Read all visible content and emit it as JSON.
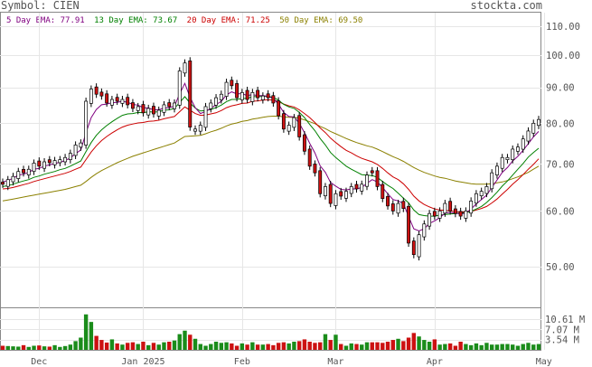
{
  "header": {
    "symbol_label": "Symbol: CIEN",
    "site": "stockta.com"
  },
  "legend": [
    {
      "text": "5 Day EMA: 77.91",
      "color": "#800080"
    },
    {
      "text": "13 Day EMA: 73.67",
      "color": "#008000"
    },
    {
      "text": "20 Day EMA: 71.25",
      "color": "#cc0000"
    },
    {
      "text": "50 Day EMA: 69.50",
      "color": "#8b8000"
    }
  ],
  "chart_data": {
    "type": "candlestick",
    "price_axis": {
      "ticks": [
        50,
        60,
        70,
        80,
        90,
        100,
        110
      ],
      "labels": [
        "50.00",
        "60.00",
        "70.00",
        "80.00",
        "90.00",
        "100.00",
        "110.00"
      ],
      "scale": "log",
      "ylim": [
        44,
        115
      ]
    },
    "volume_axis": {
      "ticks": [
        3.54,
        7.07,
        10.61
      ],
      "labels": [
        "3.54 M",
        "7.07 M",
        "10.61 M"
      ],
      "ylim": [
        0,
        14
      ]
    },
    "x_labels": [
      {
        "text": "Dec",
        "index": 7
      },
      {
        "text": "Jan 2025",
        "index": 27
      },
      {
        "text": "Feb",
        "index": 46
      },
      {
        "text": "Mar",
        "index": 64
      },
      {
        "text": "Apr",
        "index": 83
      },
      {
        "text": "May",
        "index": 104
      }
    ],
    "closes": [
      65.5,
      66.5,
      67.2,
      68.3,
      68.0,
      68.8,
      70.2,
      69.5,
      70.5,
      70.3,
      70.8,
      71.0,
      71.5,
      72.5,
      74.5,
      75.0,
      86.0,
      89.5,
      88.0,
      87.5,
      85.5,
      86.5,
      86.0,
      86.5,
      85.0,
      84.0,
      84.5,
      82.8,
      84.0,
      82.5,
      83.5,
      85.0,
      84.5,
      85.5,
      95.0,
      97.5,
      79.0,
      78.5,
      79.5,
      84.5,
      85.5,
      87.0,
      88.0,
      91.5,
      90.5,
      87.0,
      88.5,
      86.5,
      88.5,
      87.0,
      87.5,
      87.0,
      85.5,
      82.0,
      78.5,
      79.5,
      81.5,
      76.5,
      73.0,
      69.5,
      68.0,
      63.5,
      65.0,
      61.5,
      63.5,
      63.0,
      64.0,
      65.0,
      64.5,
      65.5,
      67.5,
      68.0,
      65.0,
      62.5,
      61.0,
      60.0,
      61.5,
      60.5,
      54.0,
      52.0,
      55.5,
      57.5,
      59.5,
      59.0,
      60.0,
      61.5,
      60.0,
      59.5,
      59.0,
      60.0,
      62.0,
      63.5,
      64.0,
      65.0,
      68.0,
      69.5,
      71.5,
      71.5,
      73.5,
      74.0,
      76.0,
      78.0,
      80.0,
      81.0
    ],
    "ups": [
      0,
      1,
      1,
      1,
      0,
      1,
      1,
      0,
      1,
      0,
      1,
      1,
      1,
      1,
      1,
      1,
      1,
      1,
      0,
      0,
      0,
      1,
      0,
      1,
      0,
      0,
      1,
      0,
      1,
      0,
      1,
      1,
      0,
      1,
      1,
      1,
      0,
      1,
      1,
      1,
      1,
      1,
      1,
      1,
      0,
      0,
      1,
      0,
      1,
      0,
      1,
      0,
      0,
      0,
      0,
      1,
      1,
      0,
      0,
      0,
      0,
      0,
      1,
      0,
      1,
      0,
      1,
      1,
      0,
      1,
      1,
      0,
      0,
      0,
      0,
      0,
      1,
      0,
      0,
      0,
      1,
      1,
      1,
      0,
      1,
      1,
      0,
      0,
      0,
      1,
      1,
      1,
      1,
      1,
      1,
      1,
      1,
      1,
      1,
      1,
      1,
      1,
      1,
      1
    ],
    "volumes": [
      1.4,
      1.3,
      1.2,
      1.1,
      1.6,
      1.0,
      1.4,
      1.5,
      1.2,
      1.1,
      1.6,
      1.0,
      1.3,
      1.8,
      3.0,
      4.2,
      12.2,
      9.6,
      4.8,
      3.4,
      2.5,
      3.6,
      2.2,
      1.8,
      2.4,
      2.6,
      2.0,
      2.8,
      1.6,
      2.4,
      1.8,
      2.6,
      2.8,
      3.2,
      5.4,
      6.6,
      5.2,
      3.8,
      2.0,
      1.4,
      2.0,
      2.8,
      2.4,
      2.6,
      2.2,
      1.4,
      2.2,
      1.8,
      2.6,
      1.8,
      1.8,
      2.0,
      1.6,
      2.4,
      2.6,
      2.2,
      2.8,
      3.0,
      3.6,
      2.8,
      2.4,
      2.6,
      5.4,
      3.4,
      5.2,
      2.0,
      1.4,
      2.2,
      2.0,
      1.8,
      2.6,
      2.6,
      2.6,
      2.4,
      2.8,
      3.4,
      3.8,
      3.0,
      4.2,
      5.8,
      4.6,
      3.4,
      2.8,
      3.6,
      1.8,
      2.0,
      2.2,
      1.4,
      2.8,
      2.0,
      1.6,
      2.2,
      1.6,
      2.4,
      1.8,
      1.8,
      2.0,
      2.0,
      1.8,
      1.4,
      2.0,
      2.4,
      1.8,
      2.0
    ],
    "ema5": [
      66.0,
      66.3,
      66.8,
      67.5,
      67.7,
      68.1,
      68.8,
      69.0,
      69.5,
      69.8,
      70.1,
      70.4,
      70.8,
      71.4,
      72.4,
      73.3,
      77.5,
      81.5,
      83.7,
      85.0,
      85.2,
      85.6,
      85.7,
      86.0,
      85.7,
      85.1,
      84.9,
      84.2,
      84.1,
      83.6,
      83.6,
      84.1,
      84.2,
      84.6,
      88.1,
      91.2,
      87.1,
      84.2,
      82.6,
      83.2,
      84.0,
      85.0,
      86.0,
      87.8,
      88.7,
      88.1,
      88.2,
      87.6,
      87.9,
      87.6,
      87.6,
      87.4,
      86.8,
      85.2,
      82.9,
      81.8,
      81.7,
      80.0,
      77.6,
      74.9,
      72.6,
      69.6,
      68.1,
      65.9,
      65.1,
      64.4,
      64.3,
      64.5,
      64.5,
      64.8,
      65.7,
      66.5,
      66.0,
      64.8,
      63.5,
      62.3,
      62.0,
      61.5,
      58.9,
      56.6,
      56.2,
      56.6,
      57.6,
      58.1,
      58.7,
      59.6,
      59.7,
      59.6,
      59.4,
      59.6,
      60.4,
      61.4,
      62.3,
      63.2,
      64.8,
      66.4,
      68.1,
      69.2,
      70.7,
      71.8,
      73.2,
      74.8,
      76.5,
      77.9
    ],
    "ema13": [
      65.0,
      65.2,
      65.5,
      65.9,
      66.2,
      66.5,
      67.0,
      67.3,
      67.7,
      68.0,
      68.3,
      68.7,
      69.0,
      69.5,
      70.1,
      70.7,
      72.9,
      75.1,
      76.9,
      78.3,
      79.4,
      80.4,
      81.3,
      82.1,
      82.5,
      82.6,
      82.9,
      82.8,
      83.1,
      83.0,
      83.1,
      83.5,
      83.6,
      84.0,
      85.6,
      87.3,
      85.5,
      84.1,
      83.3,
      83.4,
      83.7,
      84.2,
      84.9,
      85.9,
      86.5,
      86.5,
      86.8,
      86.8,
      87.3,
      87.3,
      87.4,
      87.4,
      87.1,
      86.3,
      85.1,
      84.4,
      84.0,
      82.9,
      81.5,
      79.7,
      78.1,
      76.1,
      74.5,
      72.7,
      71.5,
      70.5,
      69.5,
      68.8,
      68.2,
      67.6,
      67.5,
      67.4,
      67.0,
      66.1,
      65.3,
      64.6,
      63.6,
      62.6,
      61.6,
      60.2,
      59.3,
      59.1,
      59.0,
      59.0,
      59.2,
      59.3,
      59.4,
      59.5,
      59.6,
      59.7,
      59.9,
      60.4,
      60.9,
      61.7,
      62.7,
      63.8,
      65.1,
      66.2,
      67.5,
      68.8,
      70.1,
      71.6,
      72.7,
      73.7
    ],
    "ema20": [
      64.5,
      64.6,
      64.8,
      65.1,
      65.4,
      65.7,
      66.1,
      66.4,
      66.7,
      67.0,
      67.3,
      67.6,
      67.9,
      68.3,
      68.8,
      69.3,
      71.0,
      72.8,
      74.3,
      75.6,
      76.6,
      77.5,
      78.3,
      79.0,
      79.5,
      79.8,
      80.1,
      80.2,
      80.5,
      80.6,
      80.8,
      81.2,
      81.5,
      81.8,
      83.1,
      84.4,
      83.5,
      82.6,
      82.1,
      82.2,
      82.5,
      82.8,
      83.4,
      84.2,
      84.7,
      85.0,
      85.4,
      85.5,
      86.0,
      86.1,
      86.3,
      86.4,
      86.3,
      85.9,
      85.2,
      84.7,
      84.4,
      83.6,
      82.6,
      81.5,
      80.2,
      78.8,
      77.6,
      76.2,
      75.1,
      74.1,
      73.2,
      72.6,
      71.9,
      71.3,
      70.9,
      70.5,
      69.9,
      69.0,
      68.0,
      67.1,
      66.5,
      65.6,
      64.4,
      63.0,
      62.0,
      61.3,
      60.8,
      60.4,
      60.2,
      60.1,
      60.0,
      59.9,
      59.8,
      59.8,
      59.9,
      60.2,
      60.5,
      60.9,
      61.6,
      62.4,
      63.4,
      64.4,
      65.5,
      66.5,
      67.6,
      68.8,
      69.9,
      71.2
    ],
    "ema50": [
      62.0,
      62.2,
      62.4,
      62.6,
      62.8,
      63.0,
      63.2,
      63.4,
      63.6,
      63.8,
      64.0,
      64.2,
      64.4,
      64.7,
      65.0,
      65.3,
      66.1,
      67.0,
      67.8,
      68.5,
      69.1,
      69.7,
      70.3,
      70.8,
      71.3,
      71.8,
      72.2,
      72.6,
      73.0,
      73.4,
      73.8,
      74.2,
      74.6,
      75.0,
      75.8,
      76.6,
      76.7,
      76.8,
      76.9,
      77.3,
      77.8,
      78.2,
      78.7,
      79.3,
      79.8,
      80.1,
      80.5,
      80.7,
      81.1,
      81.3,
      81.6,
      81.8,
      81.9,
      81.9,
      81.7,
      81.6,
      81.6,
      81.3,
      80.9,
      80.4,
      79.9,
      79.2,
      78.6,
      77.9,
      77.3,
      76.7,
      76.1,
      75.6,
      75.1,
      74.7,
      74.3,
      74.0,
      73.5,
      72.9,
      72.3,
      71.7,
      71.2,
      70.6,
      69.9,
      69.2,
      68.6,
      68.1,
      67.7,
      67.3,
      67.0,
      66.8,
      66.5,
      66.2,
      66.0,
      65.8,
      65.6,
      65.5,
      65.5,
      65.5,
      65.6,
      65.8,
      66.0,
      66.3,
      66.7,
      67.1,
      67.6,
      68.1,
      68.8,
      69.5
    ]
  }
}
